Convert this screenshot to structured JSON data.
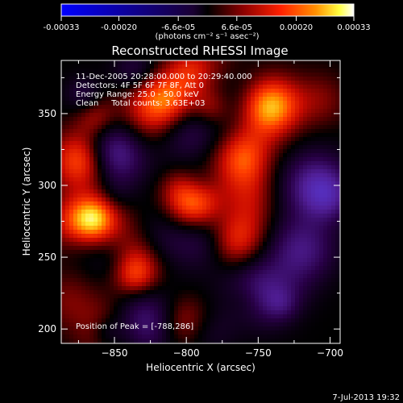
{
  "colorbar": {
    "ticks": [
      "-0.00033",
      "-0.00020",
      "-6.6e-05",
      "6.6e-05",
      "0.00020",
      "0.00033"
    ],
    "tick_values": [
      -0.00033,
      -0.0002,
      -6.6e-05,
      6.6e-05,
      0.0002,
      0.00033
    ],
    "range": [
      -0.00033,
      0.00033
    ],
    "unit_label": "(photons cm⁻² s⁻¹ asec⁻²)",
    "colormap": [
      "#0000ff",
      "#000000",
      "#7a0000",
      "#ff0000",
      "#ff8c00",
      "#ffff00",
      "#ffffff"
    ]
  },
  "chart_data": {
    "type": "heatmap",
    "title": "Reconstructed RHESSI Image",
    "xlabel": "Heliocentric X (arcsec)",
    "ylabel": "Heliocentric Y (arcsec)",
    "xlim": [
      -887,
      -693
    ],
    "ylim": [
      190,
      387
    ],
    "xticks": [
      -850,
      -800,
      -750,
      -700
    ],
    "yticks": [
      200,
      250,
      300,
      350
    ],
    "peak": {
      "x": -788,
      "y": 286
    },
    "bright_sources": [
      {
        "x": -795,
        "y": 288,
        "level": 1.0
      },
      {
        "x": -742,
        "y": 355,
        "level": 0.85
      },
      {
        "x": -815,
        "y": 358,
        "level": 0.6
      },
      {
        "x": -758,
        "y": 318,
        "level": 0.65
      },
      {
        "x": -872,
        "y": 318,
        "level": 0.7
      },
      {
        "x": -835,
        "y": 245,
        "level": 0.55
      },
      {
        "x": -870,
        "y": 275,
        "level": 0.5
      },
      {
        "x": -770,
        "y": 260,
        "level": 0.45
      }
    ],
    "dim_regions": [
      {
        "x": -850,
        "y": 325,
        "level": -0.6
      },
      {
        "x": -830,
        "y": 205,
        "level": -0.55
      },
      {
        "x": -710,
        "y": 300,
        "level": -0.6
      },
      {
        "x": -750,
        "y": 225,
        "level": -0.55
      },
      {
        "x": -795,
        "y": 335,
        "level": -0.45
      },
      {
        "x": -720,
        "y": 255,
        "level": -0.5
      }
    ],
    "annotations": {
      "time_range": "11-Dec-2005 20:28:00.000 to 20:29:40.000",
      "detectors": "Detectors: 4F 5F 6F 7F 8F, Att 0",
      "energy_range": "Energy Range: 25.0 - 50.0 keV",
      "clean_line": "Clean     Total counts: 3.63E+03",
      "peak_position": "Position of Peak = [-788,286]"
    }
  },
  "footer": {
    "timestamp": "7-Jul-2013 19:32"
  }
}
